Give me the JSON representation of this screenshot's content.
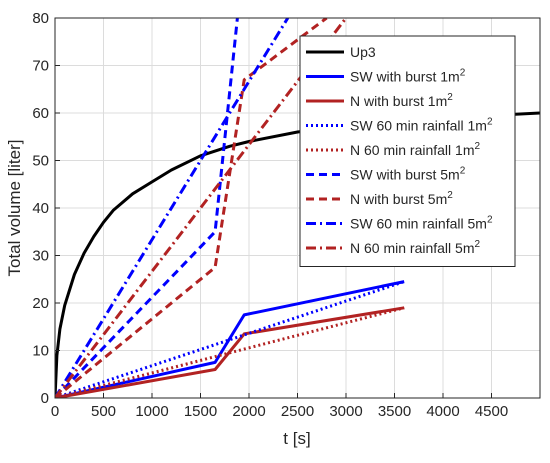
{
  "chart_data": {
    "type": "line",
    "xlabel": "t [s]",
    "ylabel": "Total volume [liter]",
    "xlim": [
      0,
      5000
    ],
    "ylim": [
      0,
      80
    ],
    "x_ticks": [
      0,
      500,
      1000,
      1500,
      2000,
      2500,
      3000,
      3500,
      4000,
      4500
    ],
    "y_ticks": [
      0,
      10,
      20,
      30,
      40,
      50,
      60,
      70,
      80
    ],
    "grid": true,
    "legend_position": "top-right",
    "series": [
      {
        "name": "Up3",
        "color": "#000000",
        "dash": "solid",
        "x": [
          0,
          20,
          50,
          100,
          200,
          300,
          400,
          500,
          600,
          800,
          1000,
          1200,
          1500,
          1800,
          2000,
          2500,
          3000,
          3500,
          4000,
          4500,
          5000
        ],
        "y": [
          0,
          9,
          14.5,
          19.5,
          26,
          30.5,
          34,
          37,
          39.5,
          43,
          45.5,
          48,
          51,
          53,
          54,
          56,
          57.3,
          58.3,
          59,
          59.5,
          60
        ]
      },
      {
        "name": "SW with burst 1m2",
        "color": "#0000FF",
        "dash": "solid",
        "x": [
          0,
          1650,
          1950,
          3600
        ],
        "y": [
          0,
          7.5,
          17.5,
          24.5
        ]
      },
      {
        "name": "N with burst 1m2",
        "color": "#B22222",
        "dash": "solid",
        "x": [
          0,
          1650,
          1950,
          3600
        ],
        "y": [
          0,
          6,
          13.5,
          19
        ]
      },
      {
        "name": "SW 60 min rainfall 1m2",
        "color": "#0000FF",
        "dash": "dotted",
        "x": [
          0,
          3600
        ],
        "y": [
          0,
          24.5
        ]
      },
      {
        "name": "N 60 min rainfall 1m2",
        "color": "#B22222",
        "dash": "dotted",
        "x": [
          0,
          3600
        ],
        "y": [
          0,
          19
        ]
      },
      {
        "name": "SW with burst 5m2",
        "color": "#0000FF",
        "dash": "dashed",
        "x": [
          0,
          1650,
          1880
        ],
        "y": [
          0,
          35,
          80
        ]
      },
      {
        "name": "N with burst 5m2",
        "color": "#B22222",
        "dash": "dashed",
        "x": [
          0,
          1650,
          1950,
          2800
        ],
        "y": [
          0,
          27.5,
          67,
          80
        ]
      },
      {
        "name": "SW 60 min rainfall 5m2",
        "color": "#0000FF",
        "dash": "dashdot",
        "x": [
          0,
          2400
        ],
        "y": [
          0,
          80
        ]
      },
      {
        "name": "N 60 min rainfall 5m2",
        "color": "#B22222",
        "dash": "dashdot",
        "x": [
          0,
          3000
        ],
        "y": [
          0,
          80
        ]
      }
    ],
    "legend": [
      {
        "base": "Up3",
        "sup": ""
      },
      {
        "base": "SW with burst 1m",
        "sup": "2"
      },
      {
        "base": "N with burst 1m",
        "sup": "2"
      },
      {
        "base": "SW 60 min rainfall 1m",
        "sup": "2"
      },
      {
        "base": "N 60 min rainfall 1m",
        "sup": "2"
      },
      {
        "base": "SW with burst 5m",
        "sup": "2"
      },
      {
        "base": "N with burst 5m",
        "sup": "2"
      },
      {
        "base": "SW 60 min rainfall 5m",
        "sup": "2"
      },
      {
        "base": "N 60 min rainfall 5m",
        "sup": "2"
      }
    ]
  }
}
